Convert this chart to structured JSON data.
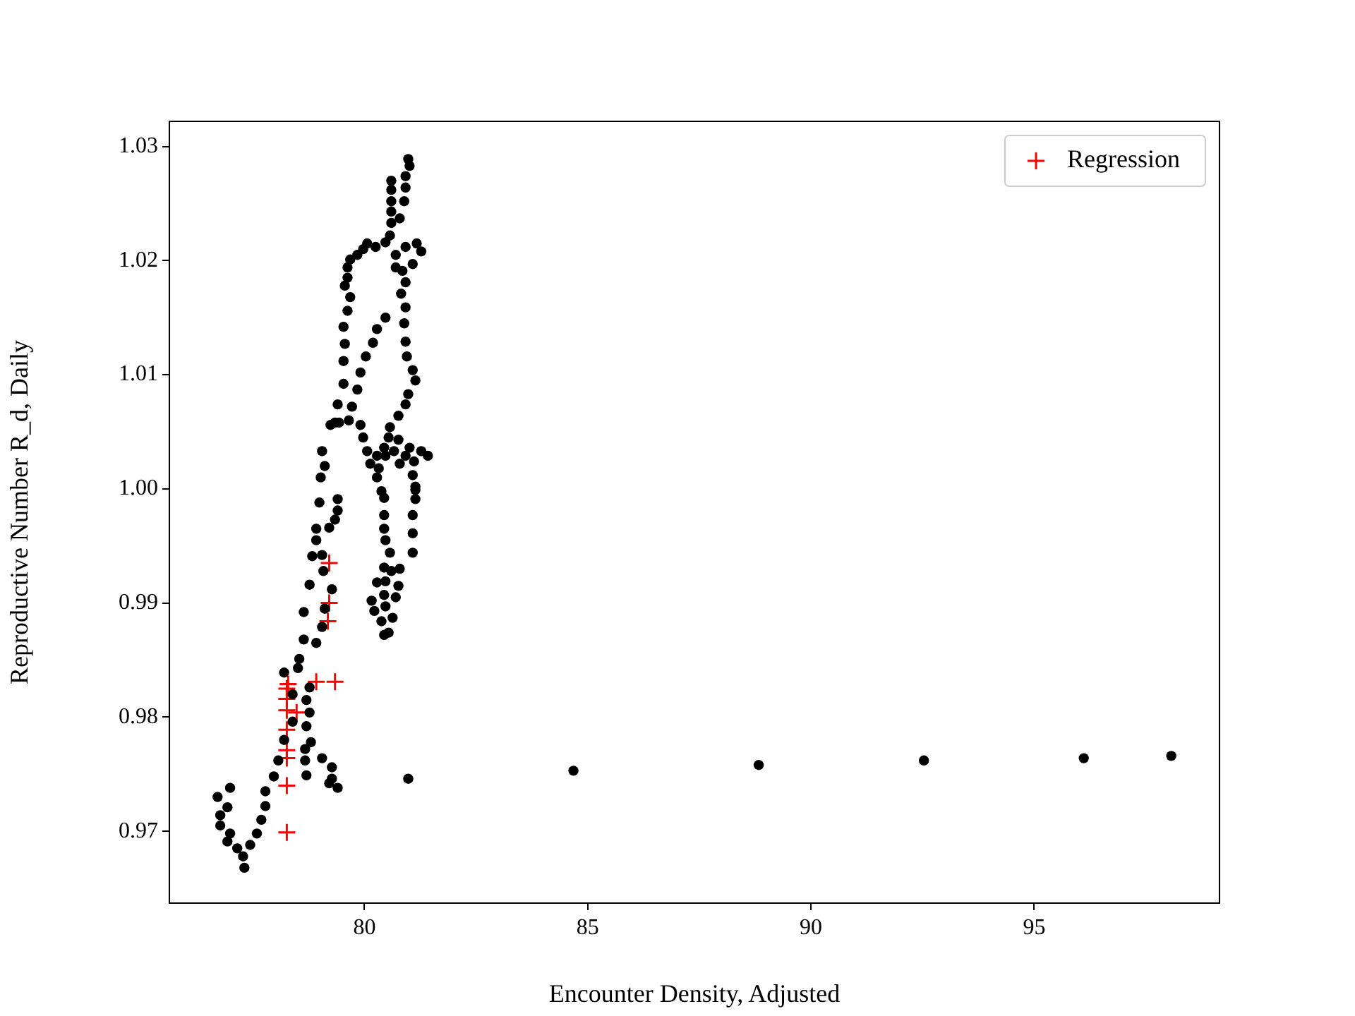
{
  "chart_data": {
    "type": "scatter",
    "xlabel": "Encounter Density, Adjusted",
    "ylabel": "Reproductive Number R_d, Daily",
    "xlim": [
      75.63,
      99.15
    ],
    "ylim": [
      0.9637,
      1.0322
    ],
    "xticks": [
      80,
      85,
      90,
      95
    ],
    "yticks": [
      0.97,
      0.98,
      0.99,
      {
        "value": 1,
        "label": "1.00"
      },
      1.01,
      1.02,
      1.03
    ],
    "grid": false,
    "legend": "top right",
    "series": [
      {
        "color": "#000000",
        "marker": "circle",
        "x": [
          76.71,
          76.99,
          76.93,
          76.77,
          76.77,
          76.99,
          76.93,
          77.15,
          77.28,
          77.31,
          77.44,
          77.59,
          77.69,
          77.78,
          77.78,
          77.97,
          78.07,
          78.2,
          78.2,
          78.51,
          78.54,
          78.64,
          78.92,
          79.05,
          78.64,
          79.11,
          78.77,
          79.08,
          79.27,
          78.83,
          79.05,
          78.92,
          78.92,
          79.21,
          79.34,
          79.4,
          79.4,
          78.99,
          80.44,
          80.44,
          80.44,
          80.47,
          80.57,
          81.08,
          81.08,
          81.08,
          81.14,
          81.14,
          80.44,
          80.6,
          80.79,
          80.28,
          80.47,
          80.76,
          80.16,
          80.44,
          80.7,
          80.22,
          80.38,
          80.54,
          80.44,
          80.63,
          80.47,
          78.77,
          78.7,
          78.77,
          78.7,
          78.8,
          78.67,
          78.67,
          78.7,
          79.05,
          79.27,
          79.27,
          79.4,
          79.21,
          78.39,
          78.39,
          80.98,
          84.68,
          88.83,
          92.53,
          96.11,
          98.07,
          80.98,
          81.01,
          80.92,
          80.6,
          80.92,
          80.6,
          80.6,
          80.89,
          80.6,
          80.79,
          80.6,
          80.57,
          80.47,
          80.25,
          80.06,
          79.97,
          79.84,
          79.68,
          79.62,
          79.62,
          79.56,
          79.68,
          79.62,
          79.53,
          79.56,
          79.53,
          79.53,
          79.4,
          79.34,
          79.24,
          79.05,
          79.11,
          79.02,
          80.47,
          80.28,
          80.19,
          80.03,
          79.91,
          79.84,
          79.72,
          79.65,
          79.91,
          79.97,
          80.06,
          80.13,
          80.28,
          80.38,
          80.7,
          80.92,
          81.17,
          81.27,
          81.08,
          80.85,
          80.7,
          80.92,
          80.82,
          80.92,
          80.89,
          80.92,
          80.95,
          81.08,
          81.14,
          80.98,
          80.92,
          80.76,
          80.57,
          80.54,
          80.76,
          81.01,
          81.27,
          81.42,
          81.11,
          80.92,
          80.66,
          80.44,
          80.28,
          80.32,
          80.79,
          81.08,
          81.14,
          80.47,
          79.43
        ],
        "values": [
          0.973,
          0.9738,
          0.9721,
          0.9714,
          0.9705,
          0.9698,
          0.9691,
          0.9685,
          0.9678,
          0.9668,
          0.9688,
          0.9698,
          0.971,
          0.9722,
          0.9735,
          0.9748,
          0.9762,
          0.978,
          0.9839,
          0.9843,
          0.9851,
          0.9868,
          0.9865,
          0.9879,
          0.9892,
          0.9895,
          0.9916,
          0.9928,
          0.9912,
          0.9941,
          0.9942,
          0.9955,
          0.9965,
          0.9966,
          0.9973,
          0.9981,
          0.9991,
          0.9988,
          0.9992,
          0.9977,
          0.9965,
          0.9955,
          0.9944,
          0.9977,
          0.9961,
          0.9944,
          0.9991,
          1.0002,
          0.9931,
          0.9928,
          0.993,
          0.9918,
          0.9919,
          0.9915,
          0.9902,
          0.9907,
          0.9905,
          0.9893,
          0.9884,
          0.9874,
          0.9872,
          0.9887,
          0.9897,
          0.9826,
          0.9815,
          0.9804,
          0.9792,
          0.9778,
          0.9772,
          0.9762,
          0.9749,
          0.9764,
          0.9756,
          0.9746,
          0.9738,
          0.9742,
          0.982,
          0.9796,
          0.9746,
          0.9753,
          0.9758,
          0.9762,
          0.9764,
          0.9766,
          1.0289,
          1.0283,
          1.0274,
          1.027,
          1.0264,
          1.0262,
          1.0252,
          1.0252,
          1.0243,
          1.0237,
          1.0233,
          1.0222,
          1.0216,
          1.0212,
          1.0215,
          1.021,
          1.0205,
          1.0201,
          1.0194,
          1.0185,
          1.0178,
          1.0168,
          1.0156,
          1.0142,
          1.0127,
          1.0112,
          1.0092,
          1.0074,
          1.0058,
          1.0056,
          1.0033,
          1.002,
          1.001,
          1.015,
          1.014,
          1.0128,
          1.0116,
          1.0102,
          1.0087,
          1.0072,
          1.006,
          1.0056,
          1.0045,
          1.0033,
          1.0022,
          1.001,
          0.9998,
          1.0205,
          1.0212,
          1.0215,
          1.0208,
          1.0197,
          1.0191,
          1.0194,
          1.0181,
          1.0171,
          1.0159,
          1.0145,
          1.0129,
          1.0116,
          1.0104,
          1.0095,
          1.0083,
          1.0074,
          1.0064,
          1.0054,
          1.0045,
          1.0043,
          1.0036,
          1.0033,
          1.0029,
          1.0024,
          1.0029,
          1.0033,
          1.0036,
          1.0029,
          1.0018,
          1.0022,
          1.0012,
          0.9999,
          1.0029,
          1.0058
        ]
      },
      {
        "name": "Regression",
        "color": "#ff0000",
        "marker": "cross",
        "x": [
          78.26,
          78.26,
          78.26,
          78.26,
          78.26,
          78.26,
          78.26,
          78.26,
          78.29,
          78.48,
          78.92,
          79.34,
          79.18,
          79.21,
          79.21
        ],
        "values": [
          0.9699,
          0.974,
          0.9764,
          0.9771,
          0.9789,
          0.9806,
          0.9816,
          0.9825,
          0.9829,
          0.9804,
          0.9831,
          0.9831,
          0.9884,
          0.99,
          0.9935
        ]
      }
    ]
  }
}
